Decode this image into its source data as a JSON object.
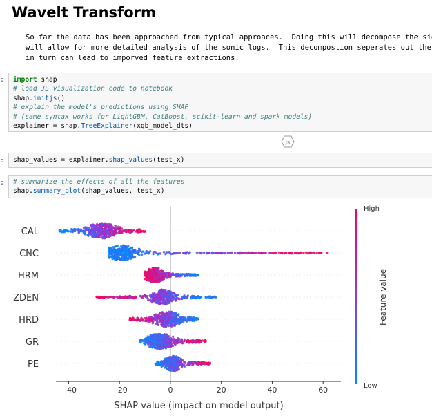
{
  "heading": "Wavelt Transform",
  "markdown_lines": [
    "So far the data has been approached from typical approaces.  Doing this will decompose the signal into",
    "will allow for more detailed analysis of the sonic logs.  This decompostion seperates out the temporal",
    "in turn can lead to imporved feature extractions."
  ],
  "prompt_glyph": ":",
  "js_badge": "js",
  "cells": {
    "cell1": {
      "l1_kw": "import",
      "l1_rest": " shap",
      "l2": "# load JS visualization code to notebook",
      "l3_a": "shap.",
      "l3_fn": "initjs",
      "l3_b": "()",
      "l4": "# explain the model's predictions using SHAP",
      "l5": "# (same syntax works for LightGBM, CatBoost, scikit-learn and spark models)",
      "l6_a": "explainer = shap.",
      "l6_fn": "TreeExplainer",
      "l6_b": "(xgb_model_dts)"
    },
    "cell2": {
      "l1_a": "shap_values = explainer.",
      "l1_fn": "shap_values",
      "l1_b": "(test_x)"
    },
    "cell3": {
      "l1": "# summarize the effects of all the features",
      "l2_a": "shap.",
      "l2_fn": "summary_plot",
      "l2_b": "(shap_values, test_x)"
    }
  },
  "chart_data": {
    "type": "scatter",
    "subtype": "beeswarm",
    "xlabel": "SHAP value (impact on model output)",
    "xlim": [
      -45,
      67
    ],
    "xticks": [
      -40,
      -20,
      0,
      20,
      40,
      60
    ],
    "features": [
      "CAL",
      "CNC",
      "HRM",
      "ZDEN",
      "HRD",
      "GR",
      "PE"
    ],
    "colorbar": {
      "label": "Feature value",
      "high": "High",
      "low": "Low",
      "high_color": "#ff0052",
      "low_color": "#008bfb"
    },
    "series": [
      {
        "feature": "CAL",
        "min": -44,
        "max": -10,
        "core": [
          -32,
          -22
        ],
        "peak": -27,
        "low_side": "left"
      },
      {
        "feature": "CNC",
        "min": -24,
        "max": 62,
        "core": [
          -23,
          -13
        ],
        "peak": -19,
        "low_side": "left"
      },
      {
        "feature": "HRM",
        "min": -10,
        "max": 11,
        "core": [
          -9,
          -3
        ],
        "peak": -6,
        "low_side": "right"
      },
      {
        "feature": "ZDEN",
        "min": -29,
        "max": 18,
        "core": [
          -6,
          1
        ],
        "peak": -3,
        "low_side": "right"
      },
      {
        "feature": "HRD",
        "min": -16,
        "max": 11,
        "core": [
          -6,
          3
        ],
        "peak": -1,
        "low_side": "right"
      },
      {
        "feature": "GR",
        "min": -12,
        "max": 14,
        "core": [
          -9,
          0
        ],
        "peak": -4,
        "low_side": "left"
      },
      {
        "feature": "PE",
        "min": -6,
        "max": 16,
        "core": [
          -1,
          5
        ],
        "peak": 1,
        "low_side": "left"
      }
    ]
  }
}
